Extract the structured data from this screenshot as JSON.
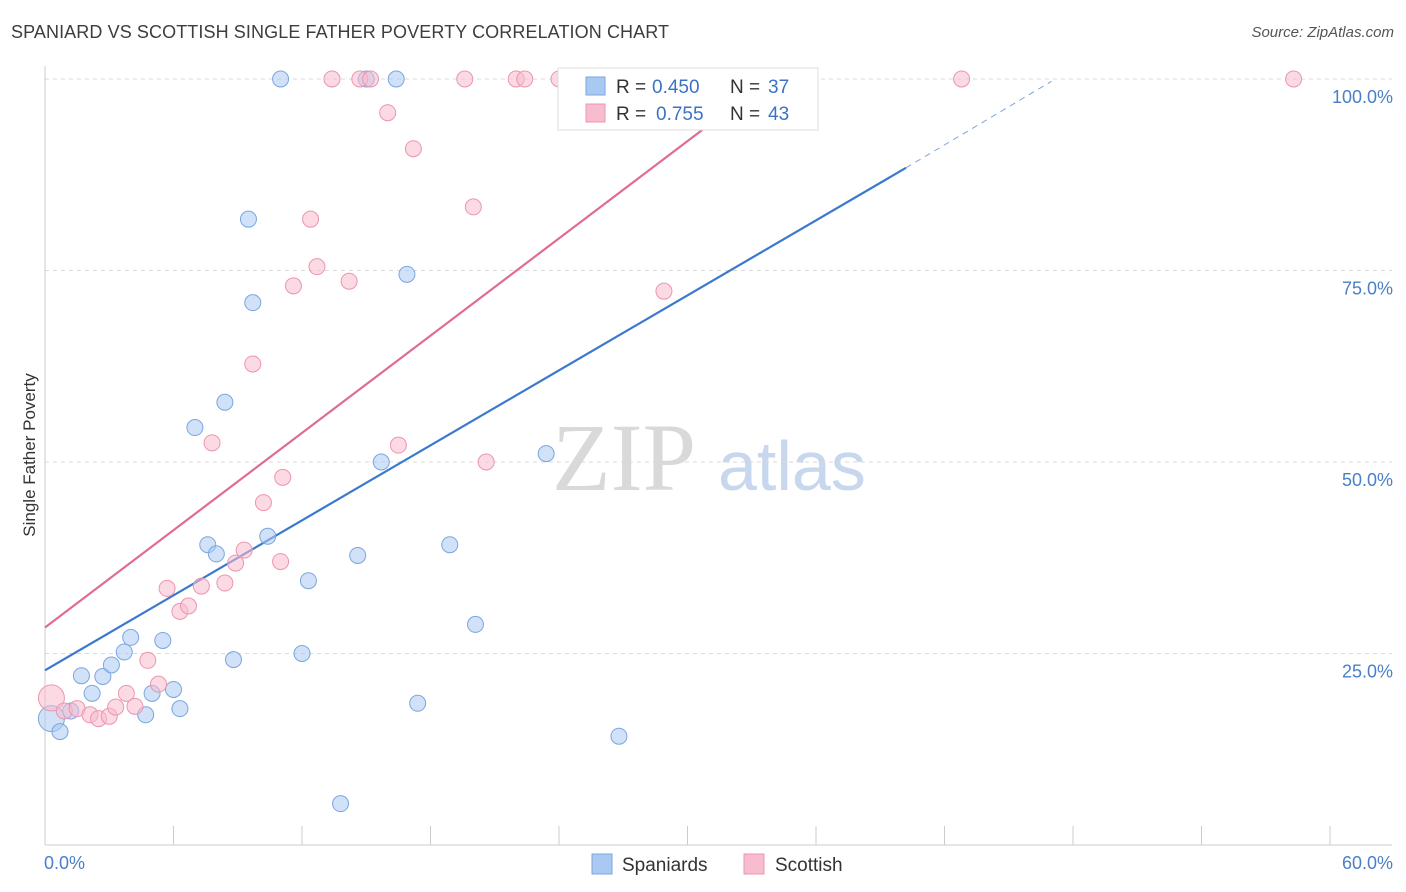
{
  "header": {
    "title": "SPANIARD VS SCOTTISH SINGLE FATHER POVERTY CORRELATION CHART",
    "source": "Source: ZipAtlas.com"
  },
  "legend": {
    "rows": [
      {
        "r_label": "R =",
        "r_value": "0.450",
        "n_label": "N =",
        "n_value": "37",
        "color": "#a9c8f2",
        "stroke": "#7aa6e0"
      },
      {
        "r_label": "R =",
        "r_value": "0.755",
        "n_label": "N =",
        "n_value": "43",
        "color": "#f7bccd",
        "stroke": "#ec95ae"
      }
    ]
  },
  "bottom_legend": [
    {
      "label": "Spaniards",
      "color": "#a9c8f2",
      "stroke": "#7aa6e0"
    },
    {
      "label": "Scottish",
      "color": "#f7bccd",
      "stroke": "#ec95ae"
    }
  ],
  "watermark": {
    "zip": "ZIP",
    "atlas": "atlas"
  },
  "chart_data": {
    "type": "scatter",
    "title": "SPANIARD VS SCOTTISH SINGLE FATHER POVERTY CORRELATION CHART",
    "xlabel": "",
    "ylabel": "Single Father Poverty",
    "xlim": [
      0,
      60
    ],
    "ylim": [
      0,
      102
    ],
    "x_tick_labels": [
      "0.0%",
      "60.0%"
    ],
    "y_ticks": [
      25,
      50,
      75,
      100
    ],
    "y_tick_labels": [
      "25.0%",
      "50.0%",
      "75.0%",
      "100.0%"
    ],
    "grid": true,
    "legend_position": "top-center",
    "series": [
      {
        "name": "Spaniards",
        "color": "#7aa6e0",
        "fill": "#a9c8f2",
        "points": [
          [
            0.3,
            16.5
          ],
          [
            0.7,
            14.8
          ],
          [
            1.2,
            17.5
          ],
          [
            1.7,
            22.1
          ],
          [
            2.2,
            19.8
          ],
          [
            2.7,
            22.0
          ],
          [
            3.1,
            23.5
          ],
          [
            3.7,
            25.2
          ],
          [
            4.0,
            27.1
          ],
          [
            4.7,
            17.0
          ],
          [
            5.0,
            19.8
          ],
          [
            5.5,
            26.7
          ],
          [
            6.0,
            20.3
          ],
          [
            6.3,
            17.8
          ],
          [
            7.0,
            54.5
          ],
          [
            7.6,
            39.2
          ],
          [
            8.0,
            38.0
          ],
          [
            8.4,
            57.8
          ],
          [
            8.8,
            24.2
          ],
          [
            9.5,
            81.7
          ],
          [
            9.7,
            70.8
          ],
          [
            10.4,
            40.3
          ],
          [
            11.0,
            100.0
          ],
          [
            12.0,
            25.0
          ],
          [
            12.3,
            34.5
          ],
          [
            13.8,
            5.4
          ],
          [
            14.6,
            37.8
          ],
          [
            15.0,
            100.0
          ],
          [
            15.7,
            50.0
          ],
          [
            16.4,
            100.0
          ],
          [
            16.9,
            74.5
          ],
          [
            17.4,
            18.5
          ],
          [
            18.9,
            39.2
          ],
          [
            20.1,
            28.8
          ],
          [
            23.4,
            51.1
          ],
          [
            26.8,
            14.2
          ],
          [
            31.2,
            100.0
          ]
        ],
        "trend": {
          "x0": 0,
          "y0": 22.8,
          "x1": 40.2,
          "y1": 88.4,
          "dash_to_x": 47,
          "dash_to_y": 99.7
        }
      },
      {
        "name": "Scottish",
        "color": "#ec95ae",
        "fill": "#f7bccd",
        "points": [
          [
            0.3,
            19.2
          ],
          [
            0.9,
            17.5
          ],
          [
            1.5,
            17.8
          ],
          [
            2.1,
            17.0
          ],
          [
            2.5,
            16.5
          ],
          [
            3.0,
            16.8
          ],
          [
            3.3,
            18.0
          ],
          [
            3.8,
            19.8
          ],
          [
            4.2,
            18.1
          ],
          [
            4.8,
            24.1
          ],
          [
            5.3,
            21.0
          ],
          [
            5.7,
            33.5
          ],
          [
            6.3,
            30.5
          ],
          [
            6.7,
            31.2
          ],
          [
            7.3,
            33.8
          ],
          [
            7.8,
            52.5
          ],
          [
            8.4,
            34.2
          ],
          [
            8.9,
            36.8
          ],
          [
            9.3,
            38.5
          ],
          [
            9.7,
            62.8
          ],
          [
            10.2,
            44.7
          ],
          [
            11.1,
            48.0
          ],
          [
            11.6,
            73.0
          ],
          [
            11.0,
            37.0
          ],
          [
            12.4,
            81.7
          ],
          [
            12.7,
            75.5
          ],
          [
            13.4,
            100.0
          ],
          [
            14.2,
            73.6
          ],
          [
            14.7,
            100.0
          ],
          [
            15.2,
            100.0
          ],
          [
            16.0,
            95.6
          ],
          [
            16.5,
            52.2
          ],
          [
            17.2,
            90.9
          ],
          [
            19.6,
            100.0
          ],
          [
            20.0,
            83.3
          ],
          [
            20.6,
            50.0
          ],
          [
            22.0,
            100.0
          ],
          [
            22.4,
            100.0
          ],
          [
            24.0,
            100.0
          ],
          [
            28.9,
            72.3
          ],
          [
            31.2,
            100.0
          ],
          [
            42.8,
            100.0
          ],
          [
            58.3,
            100.0
          ]
        ],
        "trend": {
          "x0": 0,
          "y0": 28.4,
          "x1": 33.5,
          "y1": 99.3
        }
      }
    ]
  }
}
